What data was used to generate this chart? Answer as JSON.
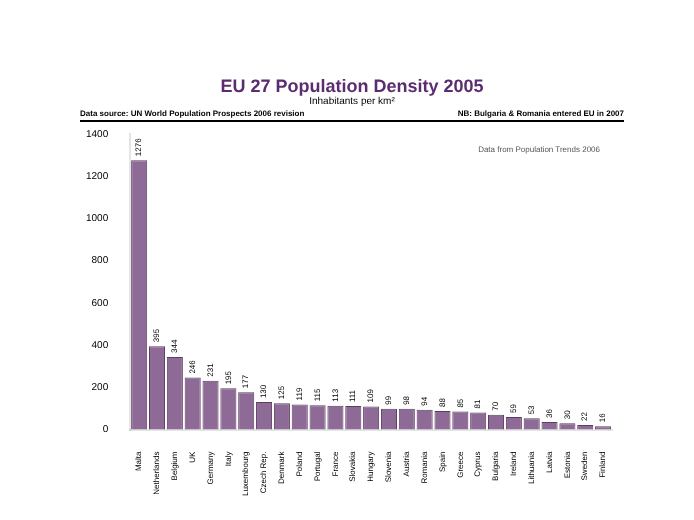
{
  "chart_data": {
    "type": "bar",
    "title": "EU 27 Population Density 2005",
    "subtitle": "Inhabitants per km²",
    "annotations": [
      "Data source: UN World Population Prospects 2006 revision",
      "NB: Bulgaria & Romania entered EU in 2007",
      "Data from Population Trends 2006"
    ],
    "categories": [
      "Malta",
      "Netherlands",
      "Belgium",
      "UK",
      "Germany",
      "Italy",
      "Luxembourg",
      "Czech Rep.",
      "Denmark",
      "Poland",
      "Portugal",
      "France",
      "Slovakia",
      "Hungary",
      "Slovenia",
      "Austria",
      "Romania",
      "Spain",
      "Greece",
      "Cyprus",
      "Bulgaria",
      "Ireland",
      "Lithuania",
      "Latvia",
      "Estonia",
      "Sweden",
      "Finland"
    ],
    "values": [
      1276,
      395,
      344,
      246,
      231,
      195,
      177,
      130,
      125,
      119,
      115,
      113,
      111,
      109,
      99,
      98,
      94,
      88,
      85,
      81,
      70,
      59,
      53,
      36,
      30,
      22,
      16
    ],
    "color": "#8e6a96",
    "ylim": [
      0,
      1400
    ],
    "yticks": [
      0,
      200,
      400,
      600,
      800,
      1000,
      1200,
      1400
    ],
    "grid": false,
    "data_labels": true
  }
}
